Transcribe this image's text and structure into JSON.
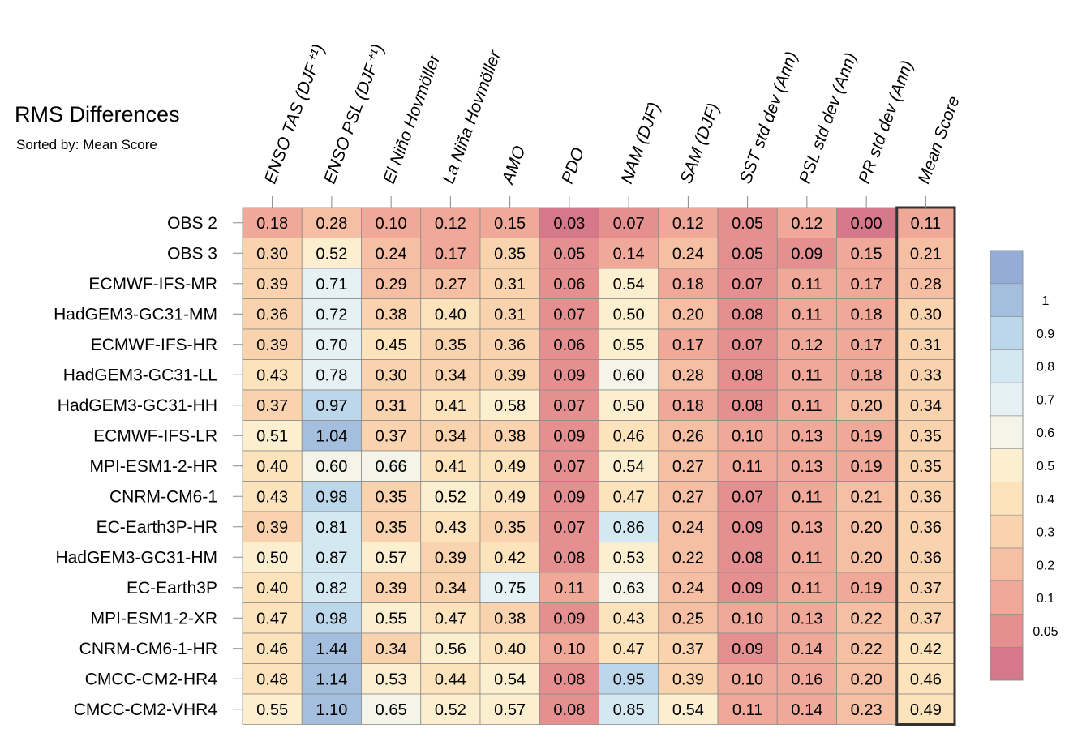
{
  "header": {
    "title": "RMS Differences",
    "subtitle": "Sorted by: Mean Score"
  },
  "chart_data": {
    "type": "heatmap",
    "title": "RMS Differences",
    "subtitle": "Sorted by: Mean Score",
    "columns": [
      "ENSO TAS (DJF⁺¹)",
      "ENSO PSL (DJF⁺¹)",
      "El Niño Hovmöller",
      "La Niña Hovmöller",
      "AMO",
      "PDO",
      "NAM (DJF)",
      "SAM (DJF)",
      "SST std dev (Ann)",
      "PSL std dev (Ann)",
      "PR std dev (Ann)",
      "Mean Score"
    ],
    "rows": [
      "OBS 2",
      "OBS 3",
      "ECMWF-IFS-MR",
      "HadGEM3-GC31-MM",
      "ECMWF-IFS-HR",
      "HadGEM3-GC31-LL",
      "HadGEM3-GC31-HH",
      "ECMWF-IFS-LR",
      "MPI-ESM1-2-HR",
      "CNRM-CM6-1",
      "EC-Earth3P-HR",
      "HadGEM3-GC31-HM",
      "EC-Earth3P",
      "MPI-ESM1-2-XR",
      "CNRM-CM6-1-HR",
      "CMCC-CM2-HR4",
      "CMCC-CM2-VHR4"
    ],
    "values": [
      [
        "0.18",
        "0.28",
        "0.10",
        "0.12",
        "0.15",
        "0.03",
        "0.07",
        "0.12",
        "0.05",
        "0.12",
        "0.00",
        "0.11"
      ],
      [
        "0.30",
        "0.52",
        "0.24",
        "0.17",
        "0.35",
        "0.05",
        "0.14",
        "0.24",
        "0.05",
        "0.09",
        "0.15",
        "0.21"
      ],
      [
        "0.39",
        "0.71",
        "0.29",
        "0.27",
        "0.31",
        "0.06",
        "0.54",
        "0.18",
        "0.07",
        "0.11",
        "0.17",
        "0.28"
      ],
      [
        "0.36",
        "0.72",
        "0.38",
        "0.40",
        "0.31",
        "0.07",
        "0.50",
        "0.20",
        "0.08",
        "0.11",
        "0.18",
        "0.30"
      ],
      [
        "0.39",
        "0.70",
        "0.45",
        "0.35",
        "0.36",
        "0.06",
        "0.55",
        "0.17",
        "0.07",
        "0.12",
        "0.17",
        "0.31"
      ],
      [
        "0.43",
        "0.78",
        "0.30",
        "0.34",
        "0.39",
        "0.09",
        "0.60",
        "0.28",
        "0.08",
        "0.11",
        "0.18",
        "0.33"
      ],
      [
        "0.37",
        "0.97",
        "0.31",
        "0.41",
        "0.58",
        "0.07",
        "0.50",
        "0.18",
        "0.08",
        "0.11",
        "0.20",
        "0.34"
      ],
      [
        "0.51",
        "1.04",
        "0.37",
        "0.34",
        "0.38",
        "0.09",
        "0.46",
        "0.26",
        "0.10",
        "0.13",
        "0.19",
        "0.35"
      ],
      [
        "0.40",
        "0.60",
        "0.66",
        "0.41",
        "0.49",
        "0.07",
        "0.54",
        "0.27",
        "0.11",
        "0.13",
        "0.19",
        "0.35"
      ],
      [
        "0.43",
        "0.98",
        "0.35",
        "0.52",
        "0.49",
        "0.09",
        "0.47",
        "0.27",
        "0.07",
        "0.11",
        "0.21",
        "0.36"
      ],
      [
        "0.39",
        "0.81",
        "0.35",
        "0.43",
        "0.35",
        "0.07",
        "0.86",
        "0.24",
        "0.09",
        "0.13",
        "0.20",
        "0.36"
      ],
      [
        "0.50",
        "0.87",
        "0.57",
        "0.39",
        "0.42",
        "0.08",
        "0.53",
        "0.22",
        "0.08",
        "0.11",
        "0.20",
        "0.36"
      ],
      [
        "0.40",
        "0.82",
        "0.39",
        "0.34",
        "0.75",
        "0.11",
        "0.63",
        "0.24",
        "0.09",
        "0.11",
        "0.19",
        "0.37"
      ],
      [
        "0.47",
        "0.98",
        "0.55",
        "0.47",
        "0.38",
        "0.09",
        "0.43",
        "0.25",
        "0.10",
        "0.13",
        "0.22",
        "0.37"
      ],
      [
        "0.46",
        "1.44",
        "0.34",
        "0.56",
        "0.40",
        "0.10",
        "0.47",
        "0.37",
        "0.09",
        "0.14",
        "0.22",
        "0.42"
      ],
      [
        "0.48",
        "1.14",
        "0.53",
        "0.44",
        "0.54",
        "0.08",
        "0.95",
        "0.39",
        "0.10",
        "0.16",
        "0.20",
        "0.46"
      ],
      [
        "0.55",
        "1.10",
        "0.65",
        "0.52",
        "0.57",
        "0.08",
        "0.85",
        "0.54",
        "0.11",
        "0.14",
        "0.23",
        "0.49"
      ]
    ],
    "colorbar": {
      "levels": [
        0.05,
        0.1,
        0.2,
        0.3,
        0.4,
        0.5,
        0.6,
        0.7,
        0.8,
        0.9,
        1
      ],
      "tick_labels": [
        "0.05",
        "0.1",
        "0.2",
        "0.3",
        "0.4",
        "0.5",
        "0.6",
        "0.7",
        "0.8",
        "0.9",
        "1"
      ],
      "colors_low_to_high": [
        "#d4788a",
        "#e58f91",
        "#f0a898",
        "#f6bfa3",
        "#f9d3ae",
        "#fce3bc",
        "#fbefcf",
        "#f4f4e8",
        "#e6f1f5",
        "#d4e8f2",
        "#bcd6ea",
        "#a4bfde",
        "#95acd6"
      ]
    },
    "highlight_column": "Mean Score",
    "legend_position": "right"
  }
}
